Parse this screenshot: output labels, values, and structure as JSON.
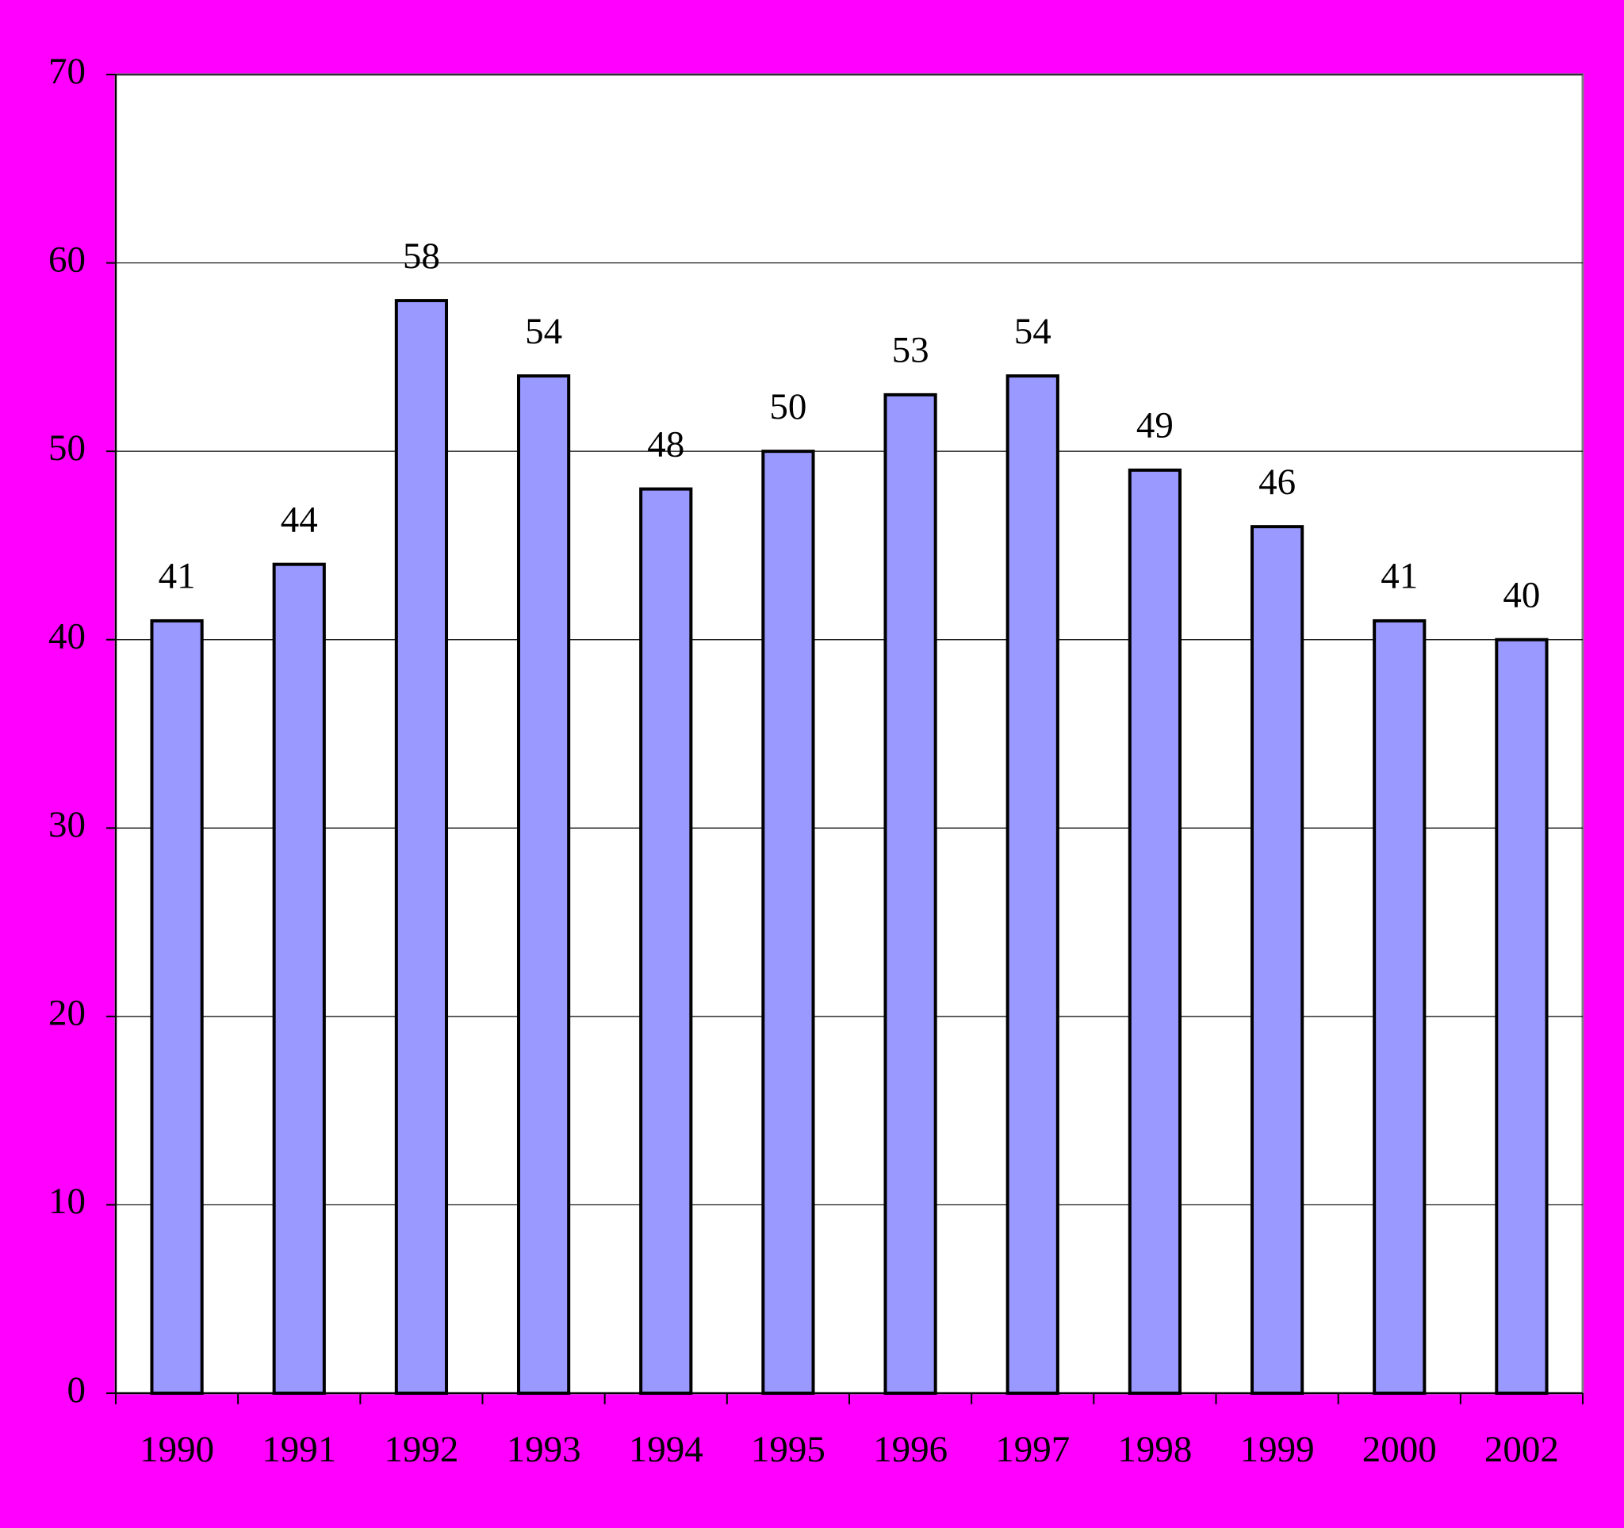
{
  "chart_data": {
    "type": "bar",
    "categories": [
      "1990",
      "1991",
      "1992",
      "1993",
      "1994",
      "1995",
      "1996",
      "1997",
      "1998",
      "1999",
      "2000",
      "2002"
    ],
    "values": [
      41,
      44,
      58,
      54,
      48,
      50,
      53,
      54,
      49,
      46,
      41,
      40
    ],
    "color": "#9999ff",
    "ylim": [
      0,
      70
    ],
    "yticks": [
      0,
      10,
      20,
      30,
      40,
      50,
      60,
      70
    ],
    "grid": true
  }
}
